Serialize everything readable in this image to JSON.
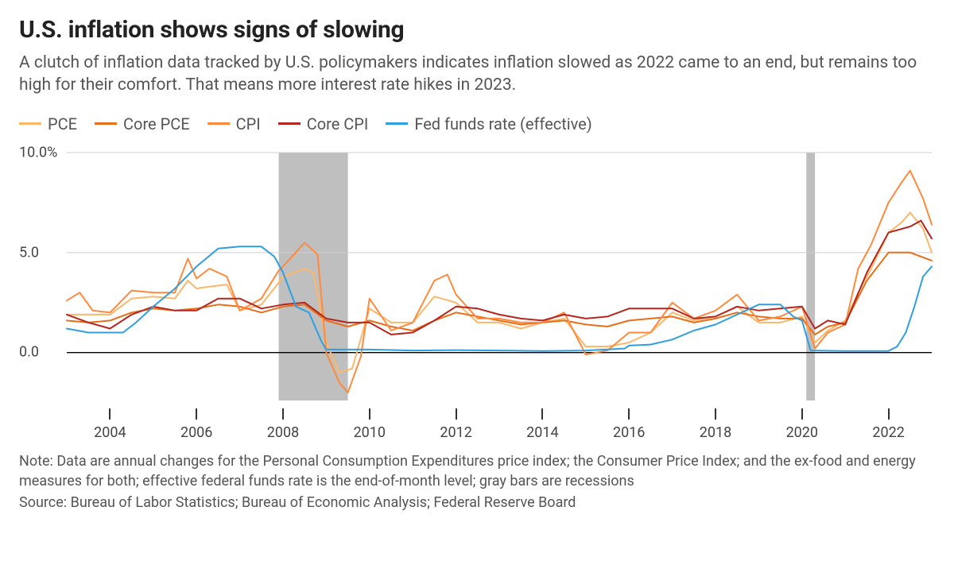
{
  "title": "U.S. inflation shows signs of slowing",
  "subtitle": "A clutch of inflation data tracked by U.S. policymakers indicates inflation slowed as 2022 came to an end, but remains too high for their comfort. That means more interest rate hikes in 2023.",
  "note": "Note: Data are annual changes for the Personal Consumption Expenditures price index; the Consumer Price Index; and the ex-food and energy measures for both; effective federal funds rate is the end-of-month level; gray bars are recessions",
  "source": "Source: Bureau of Labor Statistics; Bureau of Economic Analysis; Federal Reserve Board",
  "chart": {
    "type": "line",
    "background_color": "#ffffff",
    "grid_color": "#cfcfcf",
    "zero_line_color": "#000000",
    "recession_color": "#bfbfbf",
    "text_color": "#444444",
    "title_fontsize": 30,
    "subtitle_fontsize": 21,
    "legend_fontsize": 20,
    "axis_fontsize": 18,
    "note_fontsize": 18,
    "line_width": 2.0,
    "xlim": [
      2003,
      2023
    ],
    "ylim": [
      -2,
      10
    ],
    "yticks": [
      0,
      5,
      10
    ],
    "ytick_labels": [
      "0.0",
      "5.0",
      "10.0%"
    ],
    "xticks": [
      2004,
      2006,
      2008,
      2010,
      2012,
      2014,
      2016,
      2018,
      2020,
      2022
    ],
    "recessions": [
      {
        "start": 2007.9,
        "end": 2009.5
      },
      {
        "start": 2020.1,
        "end": 2020.3
      }
    ],
    "series": [
      {
        "name": "PCE",
        "color": "#fcb76b",
        "data": [
          [
            2003.0,
            1.9
          ],
          [
            2003.5,
            1.9
          ],
          [
            2004.0,
            1.9
          ],
          [
            2004.5,
            2.7
          ],
          [
            2005.0,
            2.8
          ],
          [
            2005.5,
            2.7
          ],
          [
            2005.8,
            3.6
          ],
          [
            2006.0,
            3.2
          ],
          [
            2006.3,
            3.3
          ],
          [
            2006.7,
            3.4
          ],
          [
            2007.0,
            2.1
          ],
          [
            2007.5,
            2.4
          ],
          [
            2007.9,
            3.5
          ],
          [
            2008.0,
            3.8
          ],
          [
            2008.5,
            4.2
          ],
          [
            2008.7,
            4.0
          ],
          [
            2009.0,
            0.5
          ],
          [
            2009.3,
            -1.0
          ],
          [
            2009.6,
            -0.8
          ],
          [
            2010.0,
            2.2
          ],
          [
            2010.5,
            1.5
          ],
          [
            2011.0,
            1.5
          ],
          [
            2011.5,
            2.8
          ],
          [
            2012.0,
            2.5
          ],
          [
            2012.5,
            1.5
          ],
          [
            2013.0,
            1.5
          ],
          [
            2013.5,
            1.2
          ],
          [
            2014.0,
            1.5
          ],
          [
            2014.5,
            1.7
          ],
          [
            2015.0,
            0.3
          ],
          [
            2015.5,
            0.3
          ],
          [
            2016.0,
            0.5
          ],
          [
            2016.5,
            1.0
          ],
          [
            2017.0,
            2.0
          ],
          [
            2017.5,
            1.6
          ],
          [
            2018.0,
            1.8
          ],
          [
            2018.5,
            2.3
          ],
          [
            2019.0,
            1.5
          ],
          [
            2019.5,
            1.5
          ],
          [
            2020.0,
            1.8
          ],
          [
            2020.3,
            0.5
          ],
          [
            2020.6,
            1.1
          ],
          [
            2021.0,
            1.6
          ],
          [
            2021.3,
            3.0
          ],
          [
            2021.6,
            4.2
          ],
          [
            2022.0,
            6.0
          ],
          [
            2022.3,
            6.5
          ],
          [
            2022.5,
            7.0
          ],
          [
            2022.8,
            6.2
          ],
          [
            2023.0,
            5.0
          ]
        ]
      },
      {
        "name": "Core PCE",
        "color": "#e86f1a",
        "data": [
          [
            2003.0,
            1.6
          ],
          [
            2003.5,
            1.5
          ],
          [
            2004.0,
            1.6
          ],
          [
            2004.5,
            2.0
          ],
          [
            2005.0,
            2.2
          ],
          [
            2005.5,
            2.1
          ],
          [
            2006.0,
            2.2
          ],
          [
            2006.5,
            2.4
          ],
          [
            2007.0,
            2.3
          ],
          [
            2007.5,
            2.0
          ],
          [
            2008.0,
            2.3
          ],
          [
            2008.5,
            2.4
          ],
          [
            2009.0,
            1.6
          ],
          [
            2009.5,
            1.3
          ],
          [
            2010.0,
            1.6
          ],
          [
            2010.5,
            1.3
          ],
          [
            2011.0,
            1.1
          ],
          [
            2011.5,
            1.6
          ],
          [
            2012.0,
            2.0
          ],
          [
            2012.5,
            1.8
          ],
          [
            2013.0,
            1.6
          ],
          [
            2013.5,
            1.4
          ],
          [
            2014.0,
            1.5
          ],
          [
            2014.5,
            1.6
          ],
          [
            2015.0,
            1.4
          ],
          [
            2015.5,
            1.3
          ],
          [
            2016.0,
            1.6
          ],
          [
            2016.5,
            1.7
          ],
          [
            2017.0,
            1.8
          ],
          [
            2017.5,
            1.5
          ],
          [
            2018.0,
            1.7
          ],
          [
            2018.5,
            2.0
          ],
          [
            2019.0,
            1.8
          ],
          [
            2019.5,
            1.7
          ],
          [
            2020.0,
            1.7
          ],
          [
            2020.3,
            0.9
          ],
          [
            2020.6,
            1.3
          ],
          [
            2021.0,
            1.5
          ],
          [
            2021.5,
            3.6
          ],
          [
            2022.0,
            5.0
          ],
          [
            2022.5,
            5.0
          ],
          [
            2023.0,
            4.6
          ]
        ]
      },
      {
        "name": "CPI",
        "color": "#ff8a3d",
        "data": [
          [
            2003.0,
            2.6
          ],
          [
            2003.3,
            3.0
          ],
          [
            2003.6,
            2.1
          ],
          [
            2004.0,
            2.0
          ],
          [
            2004.5,
            3.1
          ],
          [
            2005.0,
            3.0
          ],
          [
            2005.5,
            3.0
          ],
          [
            2005.8,
            4.7
          ],
          [
            2006.0,
            3.7
          ],
          [
            2006.3,
            4.2
          ],
          [
            2006.7,
            3.8
          ],
          [
            2007.0,
            2.1
          ],
          [
            2007.5,
            2.7
          ],
          [
            2007.9,
            4.1
          ],
          [
            2008.0,
            4.3
          ],
          [
            2008.5,
            5.5
          ],
          [
            2008.8,
            4.9
          ],
          [
            2009.0,
            0.0
          ],
          [
            2009.3,
            -1.5
          ],
          [
            2009.5,
            -2.0
          ],
          [
            2009.8,
            -0.2
          ],
          [
            2010.0,
            2.7
          ],
          [
            2010.5,
            1.1
          ],
          [
            2011.0,
            1.5
          ],
          [
            2011.5,
            3.6
          ],
          [
            2011.8,
            3.9
          ],
          [
            2012.0,
            2.9
          ],
          [
            2012.5,
            1.7
          ],
          [
            2013.0,
            1.7
          ],
          [
            2013.5,
            1.5
          ],
          [
            2014.0,
            1.5
          ],
          [
            2014.5,
            2.0
          ],
          [
            2015.0,
            -0.1
          ],
          [
            2015.5,
            0.1
          ],
          [
            2016.0,
            1.0
          ],
          [
            2016.5,
            1.0
          ],
          [
            2017.0,
            2.5
          ],
          [
            2017.5,
            1.7
          ],
          [
            2018.0,
            2.1
          ],
          [
            2018.5,
            2.9
          ],
          [
            2019.0,
            1.6
          ],
          [
            2019.5,
            1.8
          ],
          [
            2020.0,
            2.3
          ],
          [
            2020.3,
            0.2
          ],
          [
            2020.6,
            1.0
          ],
          [
            2021.0,
            1.4
          ],
          [
            2021.3,
            4.2
          ],
          [
            2021.6,
            5.4
          ],
          [
            2022.0,
            7.5
          ],
          [
            2022.3,
            8.5
          ],
          [
            2022.5,
            9.1
          ],
          [
            2022.8,
            7.7
          ],
          [
            2023.0,
            6.4
          ]
        ]
      },
      {
        "name": "Core CPI",
        "color": "#b5271f",
        "data": [
          [
            2003.0,
            1.9
          ],
          [
            2003.5,
            1.5
          ],
          [
            2004.0,
            1.2
          ],
          [
            2004.5,
            1.9
          ],
          [
            2005.0,
            2.3
          ],
          [
            2005.5,
            2.1
          ],
          [
            2006.0,
            2.1
          ],
          [
            2006.5,
            2.7
          ],
          [
            2007.0,
            2.7
          ],
          [
            2007.5,
            2.2
          ],
          [
            2008.0,
            2.4
          ],
          [
            2008.5,
            2.5
          ],
          [
            2009.0,
            1.7
          ],
          [
            2009.5,
            1.5
          ],
          [
            2010.0,
            1.5
          ],
          [
            2010.5,
            0.9
          ],
          [
            2011.0,
            1.0
          ],
          [
            2011.5,
            1.6
          ],
          [
            2012.0,
            2.3
          ],
          [
            2012.5,
            2.2
          ],
          [
            2013.0,
            1.9
          ],
          [
            2013.5,
            1.7
          ],
          [
            2014.0,
            1.6
          ],
          [
            2014.5,
            1.9
          ],
          [
            2015.0,
            1.7
          ],
          [
            2015.5,
            1.8
          ],
          [
            2016.0,
            2.2
          ],
          [
            2016.5,
            2.2
          ],
          [
            2017.0,
            2.2
          ],
          [
            2017.5,
            1.7
          ],
          [
            2018.0,
            1.8
          ],
          [
            2018.5,
            2.3
          ],
          [
            2019.0,
            2.1
          ],
          [
            2019.5,
            2.2
          ],
          [
            2020.0,
            2.3
          ],
          [
            2020.3,
            1.2
          ],
          [
            2020.6,
            1.6
          ],
          [
            2021.0,
            1.4
          ],
          [
            2021.5,
            4.0
          ],
          [
            2022.0,
            6.0
          ],
          [
            2022.5,
            6.3
          ],
          [
            2022.75,
            6.6
          ],
          [
            2023.0,
            5.7
          ]
        ]
      },
      {
        "name": "Fed funds rate (effective)",
        "color": "#2f9fe0",
        "data": [
          [
            2003.0,
            1.2
          ],
          [
            2003.5,
            1.0
          ],
          [
            2004.0,
            1.0
          ],
          [
            2004.3,
            1.0
          ],
          [
            2004.6,
            1.5
          ],
          [
            2005.0,
            2.3
          ],
          [
            2005.5,
            3.2
          ],
          [
            2006.0,
            4.3
          ],
          [
            2006.5,
            5.2
          ],
          [
            2007.0,
            5.3
          ],
          [
            2007.5,
            5.3
          ],
          [
            2007.8,
            4.8
          ],
          [
            2008.0,
            4.0
          ],
          [
            2008.3,
            2.3
          ],
          [
            2008.6,
            2.0
          ],
          [
            2008.9,
            0.5
          ],
          [
            2009.0,
            0.15
          ],
          [
            2010.0,
            0.15
          ],
          [
            2011.0,
            0.1
          ],
          [
            2012.0,
            0.12
          ],
          [
            2013.0,
            0.1
          ],
          [
            2014.0,
            0.08
          ],
          [
            2015.0,
            0.1
          ],
          [
            2015.9,
            0.2
          ],
          [
            2016.0,
            0.35
          ],
          [
            2016.5,
            0.4
          ],
          [
            2017.0,
            0.65
          ],
          [
            2017.5,
            1.1
          ],
          [
            2018.0,
            1.4
          ],
          [
            2018.5,
            1.9
          ],
          [
            2019.0,
            2.4
          ],
          [
            2019.5,
            2.4
          ],
          [
            2019.8,
            1.8
          ],
          [
            2020.0,
            1.6
          ],
          [
            2020.2,
            0.1
          ],
          [
            2021.0,
            0.08
          ],
          [
            2022.0,
            0.08
          ],
          [
            2022.2,
            0.3
          ],
          [
            2022.4,
            1.0
          ],
          [
            2022.6,
            2.3
          ],
          [
            2022.8,
            3.8
          ],
          [
            2023.0,
            4.3
          ]
        ]
      }
    ]
  }
}
